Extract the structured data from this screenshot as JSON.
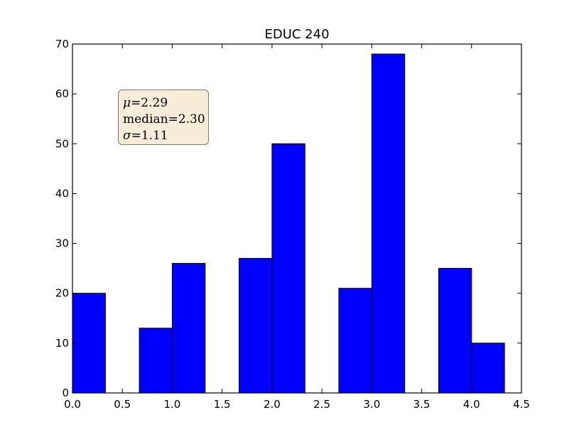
{
  "chart_data": {
    "type": "bar",
    "title": "EDUC 240",
    "xlabel": "",
    "ylabel": "",
    "xlim": [
      0.0,
      4.5
    ],
    "ylim": [
      0,
      70
    ],
    "x_ticks": [
      "0.0",
      "0.5",
      "1.0",
      "1.5",
      "2.0",
      "2.5",
      "3.0",
      "3.5",
      "4.0",
      "4.5"
    ],
    "y_ticks": [
      "0",
      "10",
      "20",
      "30",
      "40",
      "50",
      "60",
      "70"
    ],
    "bar_color": "#0000ff",
    "bins": [
      {
        "x0": 0.0,
        "x1": 0.33,
        "count": 20
      },
      {
        "x0": 0.33,
        "x1": 0.67,
        "count": 0
      },
      {
        "x0": 0.67,
        "x1": 1.0,
        "count": 13
      },
      {
        "x0": 1.0,
        "x1": 1.33,
        "count": 26
      },
      {
        "x0": 1.33,
        "x1": 1.67,
        "count": 0
      },
      {
        "x0": 1.67,
        "x1": 2.0,
        "count": 27
      },
      {
        "x0": 2.0,
        "x1": 2.33,
        "count": 50
      },
      {
        "x0": 2.33,
        "x1": 2.67,
        "count": 0
      },
      {
        "x0": 2.67,
        "x1": 3.0,
        "count": 21
      },
      {
        "x0": 3.0,
        "x1": 3.33,
        "count": 68
      },
      {
        "x0": 3.33,
        "x1": 3.67,
        "count": 0
      },
      {
        "x0": 3.67,
        "x1": 4.0,
        "count": 25
      },
      {
        "x0": 4.0,
        "x1": 4.33,
        "count": 10
      }
    ],
    "stats": {
      "mu_label": "μ",
      "mu_value": "=2.29",
      "median_label": "median",
      "median_value": "=2.30",
      "sigma_label": "σ",
      "sigma_value": "=1.11"
    }
  }
}
